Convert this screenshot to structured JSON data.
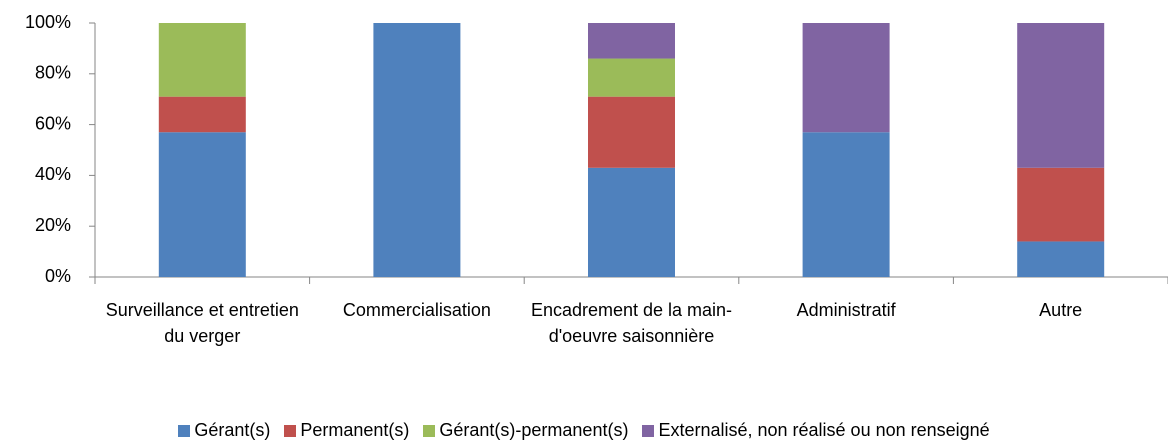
{
  "chart_data": {
    "type": "stacked_bar",
    "categories": [
      "Surveillance et entretien du verger",
      "Commercialisation",
      "Encadrement de la main-d'oeuvre saisonnière",
      "Administratif",
      "Autre"
    ],
    "series": [
      {
        "name": "Gérant(s)",
        "color": "#4f81bd",
        "values": [
          57,
          100,
          43,
          57,
          14
        ]
      },
      {
        "name": "Permanent(s)",
        "color": "#c0504d",
        "values": [
          14,
          0,
          28,
          0,
          29
        ]
      },
      {
        "name": "Gérant(s)-permanent(s)",
        "color": "#9bbb59",
        "values": [
          29,
          0,
          15,
          0,
          0
        ]
      },
      {
        "name": "Externalisé, non réalisé ou non renseigné",
        "color": "#8064a2",
        "values": [
          0,
          0,
          14,
          43,
          57
        ]
      }
    ],
    "ylim": [
      0,
      100
    ],
    "yticks": [
      {
        "value": 0,
        "label": "0%"
      },
      {
        "value": 20,
        "label": "20%"
      },
      {
        "value": 40,
        "label": "40%"
      },
      {
        "value": 60,
        "label": "60%"
      },
      {
        "value": 80,
        "label": "80%"
      },
      {
        "value": 100,
        "label": "100%"
      }
    ],
    "grid": false,
    "legend": "bottom"
  }
}
